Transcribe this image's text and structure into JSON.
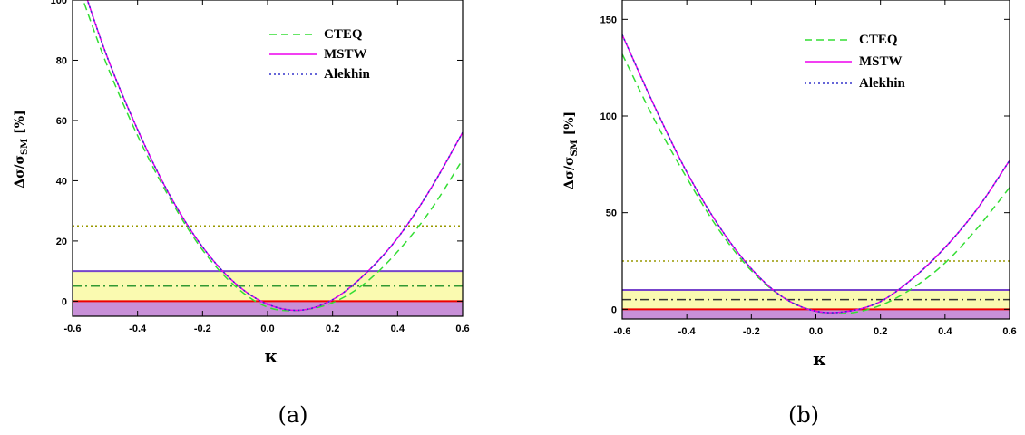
{
  "chart_data": [
    {
      "type": "line",
      "caption": "(a)",
      "xlabel": "κ",
      "ylabel": "Δσ/σSM [%]",
      "ylabel_parts": {
        "main": "Δσ/σ",
        "sub": "SM",
        "unit": " [%]"
      },
      "xlim": [
        -0.6,
        0.6
      ],
      "ylim": [
        -5,
        100
      ],
      "xticks": [
        -0.6,
        -0.4,
        -0.2,
        0.0,
        0.2,
        0.4,
        0.6
      ],
      "xtick_labels": [
        "-0.6",
        "-0.4",
        "-0.2",
        "0.0",
        "0.2",
        "0.4",
        "0.6"
      ],
      "yticks": [
        0,
        20,
        40,
        60,
        80,
        100
      ],
      "ytick_labels": [
        "0",
        "20",
        "40",
        "60",
        "80",
        "100"
      ],
      "grid": false,
      "legend_position": "top-right",
      "series": [
        {
          "name": "CTEQ",
          "color": "#33dd33",
          "style": "dashed",
          "x": [
            -0.6,
            -0.5,
            -0.4,
            -0.3,
            -0.2,
            -0.1,
            0.0,
            0.1,
            0.2,
            0.3,
            0.4,
            0.5,
            0.6
          ],
          "y": [
            110,
            80,
            55,
            34,
            17,
            5,
            -2,
            -3,
            -0.5,
            6,
            16.5,
            30,
            47
          ]
        },
        {
          "name": "MSTW",
          "color": "#ee00ee",
          "style": "solid",
          "x": [
            -0.6,
            -0.5,
            -0.4,
            -0.3,
            -0.2,
            -0.1,
            0.0,
            0.1,
            0.2,
            0.3,
            0.4,
            0.5,
            0.6
          ],
          "y": [
            115,
            83,
            57,
            35,
            18,
            6,
            -1,
            -3,
            0.5,
            9,
            21,
            37,
            56
          ]
        },
        {
          "name": "Alekhin",
          "color": "#3333cc",
          "style": "dotted",
          "x": [
            -0.6,
            -0.5,
            -0.4,
            -0.3,
            -0.2,
            -0.1,
            0.0,
            0.1,
            0.2,
            0.3,
            0.4,
            0.5,
            0.6
          ],
          "y": [
            115,
            83,
            57,
            35,
            18,
            6,
            -1,
            -3,
            0.5,
            9,
            21,
            37,
            56
          ]
        }
      ],
      "bands": [
        {
          "y0": 0,
          "y1": 10,
          "color": "#fafab0"
        },
        {
          "y0": -5,
          "y1": 0,
          "color": "#c890d8"
        }
      ],
      "hlines": [
        {
          "y": 25,
          "color": "#999900",
          "style": "dotted"
        },
        {
          "y": 10,
          "color": "#7744cc",
          "style": "solid"
        },
        {
          "y": 5,
          "color": "#339933",
          "style": "dashdot"
        },
        {
          "y": 0,
          "color": "#ee0000",
          "style": "solid"
        }
      ],
      "legend": [
        "CTEQ",
        "MSTW",
        "Alekhin"
      ]
    },
    {
      "type": "line",
      "caption": "(b)",
      "xlabel": "κ",
      "ylabel": "Δσ/σSM [%]",
      "ylabel_parts": {
        "main": "Δσ/σ",
        "sub": "SM",
        "unit": " [%]"
      },
      "xlim": [
        -0.6,
        0.6
      ],
      "ylim": [
        -5,
        160
      ],
      "xticks": [
        -0.6,
        -0.4,
        -0.2,
        0.0,
        0.2,
        0.4,
        0.6
      ],
      "xtick_labels": [
        "-0.6",
        "-0.4",
        "-0.2",
        "0.0",
        "0.2",
        "0.4",
        "0.6"
      ],
      "yticks": [
        0,
        50,
        100,
        150
      ],
      "ytick_labels": [
        "0",
        "50",
        "100",
        "150"
      ],
      "grid": false,
      "legend_position": "top-right",
      "series": [
        {
          "name": "CTEQ",
          "color": "#33dd33",
          "style": "dashed",
          "x": [
            -0.6,
            -0.5,
            -0.4,
            -0.3,
            -0.2,
            -0.1,
            0.0,
            0.1,
            0.2,
            0.3,
            0.4,
            0.5,
            0.6
          ],
          "y": [
            132,
            98,
            68,
            41,
            20,
            6,
            -1,
            -2,
            2,
            11,
            24,
            42,
            63
          ]
        },
        {
          "name": "MSTW",
          "color": "#ee00ee",
          "style": "solid",
          "x": [
            -0.6,
            -0.5,
            -0.4,
            -0.3,
            -0.2,
            -0.1,
            0.0,
            0.1,
            0.2,
            0.3,
            0.4,
            0.5,
            0.6
          ],
          "y": [
            142,
            105,
            71,
            43,
            21,
            6,
            -1,
            -1,
            4,
            16,
            32,
            52,
            77
          ]
        },
        {
          "name": "Alekhin",
          "color": "#3333cc",
          "style": "dotted",
          "x": [
            -0.6,
            -0.5,
            -0.4,
            -0.3,
            -0.2,
            -0.1,
            0.0,
            0.1,
            0.2,
            0.3,
            0.4,
            0.5,
            0.6
          ],
          "y": [
            142,
            105,
            71,
            43,
            21,
            6,
            -1,
            -1,
            4,
            16,
            32,
            52,
            77
          ]
        }
      ],
      "bands": [
        {
          "y0": 0,
          "y1": 10,
          "color": "#fafab0"
        },
        {
          "y0": -5,
          "y1": 0,
          "color": "#c890d8"
        }
      ],
      "hlines": [
        {
          "y": 25,
          "color": "#999900",
          "style": "dotted"
        },
        {
          "y": 10,
          "color": "#7744cc",
          "style": "solid"
        },
        {
          "y": 5,
          "color": "#333333",
          "style": "dashdot"
        },
        {
          "y": 0,
          "color": "#ee0000",
          "style": "solid"
        }
      ],
      "legend": [
        "CTEQ",
        "MSTW",
        "Alekhin"
      ]
    }
  ]
}
